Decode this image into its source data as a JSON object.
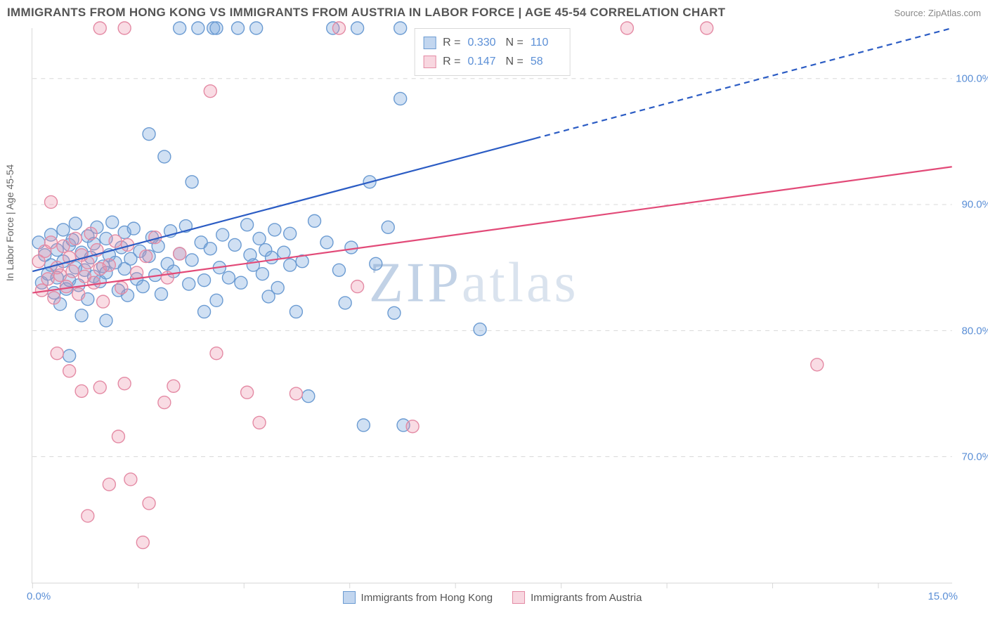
{
  "meta": {
    "title": "IMMIGRANTS FROM HONG KONG VS IMMIGRANTS FROM AUSTRIA IN LABOR FORCE | AGE 45-54 CORRELATION CHART",
    "source_label": "Source: ZipAtlas.com",
    "watermark_zip": "ZIP",
    "watermark_atlas": "atlas"
  },
  "chart": {
    "type": "scatter",
    "ylabel": "In Labor Force | Age 45-54",
    "xlim": [
      0,
      15
    ],
    "ylim": [
      60,
      104
    ],
    "xtick_labels": {
      "min": "0.0%",
      "max": "15.0%"
    },
    "xtick_positions_pct": [
      0,
      11.5,
      23.0,
      34.5,
      46.0,
      57.5,
      69.0,
      80.5,
      92.0
    ],
    "ytick_lines": [
      {
        "y": 70,
        "label": "70.0%"
      },
      {
        "y": 80,
        "label": "80.0%"
      },
      {
        "y": 90,
        "label": "90.0%"
      },
      {
        "y": 100,
        "label": "100.0%"
      }
    ],
    "background_color": "#ffffff",
    "grid_color": "#d8d8d8",
    "grid_dash": "6,6",
    "marker_radius": 9,
    "marker_stroke_width": 1.4,
    "series": [
      {
        "key": "hk",
        "label": "Immigrants from Hong Kong",
        "fill_color": "rgba(120,165,220,0.35)",
        "stroke_color": "#6b9bd2",
        "trend_color": "#2b5cc4",
        "trend_width": 2.2,
        "trend_solid_end_x": 8.2,
        "trend_start": {
          "x": 0,
          "y": 84.7
        },
        "trend_end": {
          "x": 15,
          "y": 104.0
        },
        "r": "0.330",
        "n": "110",
        "points": [
          [
            0.1,
            87
          ],
          [
            0.15,
            83.8
          ],
          [
            0.2,
            86
          ],
          [
            0.25,
            84.5
          ],
          [
            0.3,
            85.2
          ],
          [
            0.3,
            87.6
          ],
          [
            0.35,
            83
          ],
          [
            0.4,
            86.4
          ],
          [
            0.4,
            84.2
          ],
          [
            0.45,
            82.1
          ],
          [
            0.5,
            85.5
          ],
          [
            0.5,
            88
          ],
          [
            0.55,
            83.3
          ],
          [
            0.6,
            86.8
          ],
          [
            0.6,
            84
          ],
          [
            0.65,
            87.2
          ],
          [
            0.7,
            85
          ],
          [
            0.7,
            88.5
          ],
          [
            0.75,
            83.6
          ],
          [
            0.8,
            86.2
          ],
          [
            0.85,
            84.8
          ],
          [
            0.9,
            87.5
          ],
          [
            0.9,
            82.5
          ],
          [
            0.95,
            85.8
          ],
          [
            1.0,
            84.3
          ],
          [
            1.0,
            86.9
          ],
          [
            1.05,
            88.2
          ],
          [
            1.1,
            83.9
          ],
          [
            1.15,
            85.1
          ],
          [
            1.2,
            87.3
          ],
          [
            1.2,
            84.6
          ],
          [
            1.25,
            86
          ],
          [
            1.3,
            88.6
          ],
          [
            1.35,
            85.4
          ],
          [
            1.4,
            83.2
          ],
          [
            1.45,
            86.6
          ],
          [
            1.5,
            84.9
          ],
          [
            1.5,
            87.8
          ],
          [
            1.55,
            82.8
          ],
          [
            1.6,
            85.7
          ],
          [
            1.65,
            88.1
          ],
          [
            1.7,
            84.1
          ],
          [
            1.75,
            86.3
          ],
          [
            1.8,
            83.5
          ],
          [
            1.9,
            85.9
          ],
          [
            1.95,
            87.4
          ],
          [
            2.0,
            84.4
          ],
          [
            2.05,
            86.7
          ],
          [
            2.1,
            82.9
          ],
          [
            2.2,
            85.3
          ],
          [
            2.25,
            87.9
          ],
          [
            2.3,
            84.7
          ],
          [
            2.4,
            86.1
          ],
          [
            2.5,
            88.3
          ],
          [
            2.55,
            83.7
          ],
          [
            2.6,
            85.6
          ],
          [
            2.7,
            104
          ],
          [
            2.75,
            87
          ],
          [
            2.8,
            84
          ],
          [
            2.9,
            86.5
          ],
          [
            2.95,
            104
          ],
          [
            3.0,
            82.4
          ],
          [
            3.05,
            85
          ],
          [
            3.1,
            87.6
          ],
          [
            3.2,
            84.2
          ],
          [
            3.3,
            86.8
          ],
          [
            3.35,
            104
          ],
          [
            3.4,
            83.8
          ],
          [
            3.5,
            88.4
          ],
          [
            3.55,
            86
          ],
          [
            3.6,
            85.2
          ],
          [
            3.65,
            104
          ],
          [
            3.7,
            87.3
          ],
          [
            3.75,
            84.5
          ],
          [
            3.8,
            86.4
          ],
          [
            3.85,
            82.7
          ],
          [
            3.9,
            85.8
          ],
          [
            3.95,
            88
          ],
          [
            4.0,
            83.4
          ],
          [
            4.1,
            86.2
          ],
          [
            4.2,
            87.7
          ],
          [
            4.3,
            81.5
          ],
          [
            4.4,
            85.5
          ],
          [
            4.5,
            74.8
          ],
          [
            4.6,
            88.7
          ],
          [
            4.8,
            87
          ],
          [
            4.9,
            104
          ],
          [
            5.0,
            84.8
          ],
          [
            5.1,
            82.2
          ],
          [
            5.2,
            86.6
          ],
          [
            5.3,
            104
          ],
          [
            5.5,
            91.8
          ],
          [
            5.6,
            85.3
          ],
          [
            5.8,
            88.2
          ],
          [
            5.9,
            81.4
          ],
          [
            6.0,
            98.4
          ],
          [
            6.05,
            72.5
          ],
          [
            7.3,
            80.1
          ],
          [
            2.15,
            93.8
          ],
          [
            2.6,
            91.8
          ],
          [
            1.9,
            95.6
          ],
          [
            2.4,
            104
          ],
          [
            6.0,
            104
          ],
          [
            3.0,
            104
          ],
          [
            2.8,
            81.5
          ],
          [
            0.6,
            78
          ],
          [
            1.2,
            80.8
          ],
          [
            4.2,
            85.2
          ],
          [
            5.4,
            72.5
          ],
          [
            0.8,
            81.2
          ]
        ]
      },
      {
        "key": "at",
        "label": "Immigrants from Austria",
        "fill_color": "rgba(235,140,165,0.30)",
        "stroke_color": "#e48aa4",
        "trend_color": "#e24a78",
        "trend_width": 2.2,
        "trend_solid_end_x": 15,
        "trend_start": {
          "x": 0,
          "y": 83.0
        },
        "trend_end": {
          "x": 15,
          "y": 93.0
        },
        "r": "0.147",
        "n": "58",
        "points": [
          [
            0.1,
            85.5
          ],
          [
            0.15,
            83.2
          ],
          [
            0.2,
            86.3
          ],
          [
            0.25,
            84.1
          ],
          [
            0.3,
            87
          ],
          [
            0.35,
            82.6
          ],
          [
            0.4,
            85
          ],
          [
            0.45,
            84.4
          ],
          [
            0.5,
            86.7
          ],
          [
            0.55,
            83.5
          ],
          [
            0.6,
            85.8
          ],
          [
            0.65,
            84.7
          ],
          [
            0.7,
            87.3
          ],
          [
            0.75,
            82.9
          ],
          [
            0.8,
            86
          ],
          [
            0.85,
            84.3
          ],
          [
            0.9,
            85.4
          ],
          [
            0.95,
            87.7
          ],
          [
            1.0,
            83.8
          ],
          [
            1.05,
            86.4
          ],
          [
            1.1,
            84.9
          ],
          [
            1.15,
            82.3
          ],
          [
            1.25,
            85.2
          ],
          [
            1.35,
            87.1
          ],
          [
            1.45,
            83.4
          ],
          [
            1.55,
            86.8
          ],
          [
            1.7,
            84.6
          ],
          [
            1.85,
            85.9
          ],
          [
            2.0,
            87.4
          ],
          [
            2.2,
            84.2
          ],
          [
            2.4,
            86.1
          ],
          [
            0.3,
            90.2
          ],
          [
            0.4,
            78.2
          ],
          [
            0.6,
            76.8
          ],
          [
            0.8,
            75.2
          ],
          [
            0.9,
            65.3
          ],
          [
            1.1,
            75.5
          ],
          [
            1.25,
            67.8
          ],
          [
            1.4,
            71.6
          ],
          [
            1.5,
            75.8
          ],
          [
            1.6,
            68.2
          ],
          [
            1.8,
            63.2
          ],
          [
            1.9,
            66.3
          ],
          [
            2.15,
            74.3
          ],
          [
            2.3,
            75.6
          ],
          [
            2.9,
            99
          ],
          [
            3.0,
            78.2
          ],
          [
            3.5,
            75.1
          ],
          [
            3.7,
            72.7
          ],
          [
            4.3,
            75
          ],
          [
            5.0,
            104
          ],
          [
            5.3,
            83.5
          ],
          [
            6.2,
            72.4
          ],
          [
            9.7,
            104
          ],
          [
            11.0,
            104
          ],
          [
            12.8,
            77.3
          ],
          [
            1.1,
            104
          ],
          [
            1.5,
            104
          ]
        ]
      }
    ],
    "legend_bottom": [
      {
        "series": "hk"
      },
      {
        "series": "at"
      }
    ],
    "legend_top_labels": {
      "r": "R =",
      "n": "N ="
    }
  }
}
